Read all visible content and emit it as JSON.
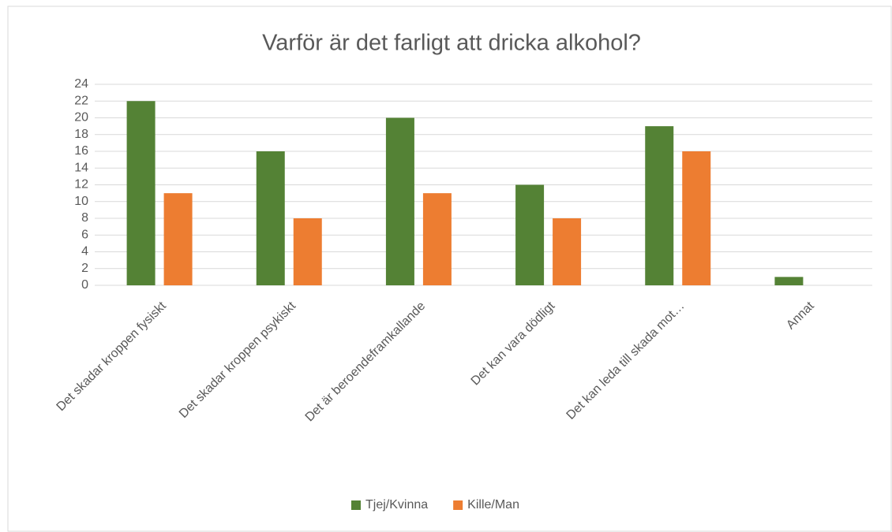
{
  "chart_data": {
    "type": "bar",
    "title": "Varför är det farligt att dricka alkohol?",
    "categories": [
      "Det skadar kroppen fysiskt",
      "Det skadar kroppen psykiskt",
      "Det är beroendeframkallande",
      "Det kan vara dödligt",
      "Det kan leda till skada mot…",
      "Annat"
    ],
    "series": [
      {
        "name": "Tjej/Kvinna",
        "color": "#548235",
        "values": [
          22,
          16,
          20,
          12,
          19,
          1
        ]
      },
      {
        "name": "Kille/Man",
        "color": "#ed7d31",
        "values": [
          11,
          8,
          11,
          8,
          16,
          0
        ]
      }
    ],
    "ylim": [
      0,
      24
    ],
    "yticks": [
      0,
      2,
      4,
      6,
      8,
      10,
      12,
      14,
      16,
      18,
      20,
      22,
      24
    ],
    "grid": true,
    "legend": "bottom"
  }
}
